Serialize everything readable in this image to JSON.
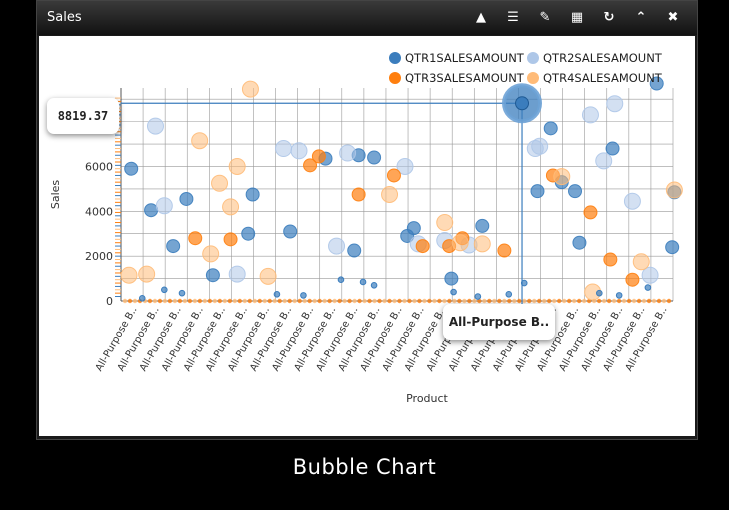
{
  "window": {
    "title": "Sales",
    "tools": [
      {
        "icon": "warning-icon",
        "glyph": "▲"
      },
      {
        "icon": "list-icon",
        "glyph": "☰"
      },
      {
        "icon": "pencil-icon",
        "glyph": "✎"
      },
      {
        "icon": "grid-icon",
        "glyph": "▦"
      },
      {
        "icon": "refresh-icon",
        "glyph": "↻"
      },
      {
        "icon": "collapse-icon",
        "glyph": "⌃"
      },
      {
        "icon": "close-icon",
        "glyph": "✖"
      }
    ]
  },
  "caption": "Bubble Chart",
  "colors": {
    "QTR1SALESAMOUNT": "#3b7dbd",
    "QTR2SALESAMOUNT": "#aec7e8",
    "QTR3SALESAMOUNT": "#ff7f0e",
    "QTR4SALESAMOUNT": "#ffbb78"
  },
  "tooltip_value": "8819.37",
  "tooltip_category": "All-Purpose B..",
  "chart_data": {
    "type": "scatter",
    "xlabel": "Product",
    "ylabel": "Sales",
    "ylim": [
      0,
      9500
    ],
    "yticks": [
      0,
      2000,
      4000,
      6000
    ],
    "category_label": "All-Purpose B..",
    "n_categories": 25,
    "series": [
      {
        "name": "QTR1SALESAMOUNT",
        "points": [
          [
            0.1,
            5900
          ],
          [
            1.0,
            4050
          ],
          [
            2.0,
            2450
          ],
          [
            2.6,
            4550
          ],
          [
            3.8,
            1150
          ],
          [
            5.6,
            4750
          ],
          [
            5.4,
            3000
          ],
          [
            7.3,
            3100
          ],
          [
            8.9,
            6350
          ],
          [
            10.2,
            2250
          ],
          [
            10.4,
            6500
          ],
          [
            11.1,
            6400
          ],
          [
            12.6,
            2900
          ],
          [
            12.9,
            3250
          ],
          [
            14.6,
            1000
          ],
          [
            16.0,
            3350
          ],
          [
            17.8,
            8819
          ],
          [
            18.5,
            4900
          ],
          [
            19.1,
            7700
          ],
          [
            19.6,
            5300
          ],
          [
            20.2,
            4900
          ],
          [
            20.4,
            2600
          ],
          [
            21.9,
            6800
          ],
          [
            23.9,
            9700
          ],
          [
            24.7,
            4850
          ],
          [
            24.6,
            2400
          ]
        ]
      },
      {
        "name": "QTR2SALESAMOUNT",
        "points": [
          [
            1.2,
            7800
          ],
          [
            1.6,
            4250
          ],
          [
            4.9,
            1200
          ],
          [
            7.0,
            6800
          ],
          [
            7.7,
            6700
          ],
          [
            9.4,
            2450
          ],
          [
            9.9,
            6600
          ],
          [
            12.5,
            6000
          ],
          [
            13.1,
            2550
          ],
          [
            14.3,
            2700
          ],
          [
            15.4,
            2500
          ],
          [
            18.4,
            6800
          ],
          [
            18.6,
            6900
          ],
          [
            20.9,
            8300
          ],
          [
            21.5,
            6250
          ],
          [
            22.0,
            8800
          ],
          [
            22.8,
            4450
          ],
          [
            23.6,
            1150
          ]
        ]
      },
      {
        "name": "QTR3SALESAMOUNT",
        "points": [
          [
            3.0,
            2800
          ],
          [
            4.6,
            2750
          ],
          [
            8.2,
            6050
          ],
          [
            8.6,
            6450
          ],
          [
            10.4,
            4750
          ],
          [
            12.0,
            5600
          ],
          [
            13.3,
            2450
          ],
          [
            14.5,
            2450
          ],
          [
            15.1,
            2800
          ],
          [
            17.0,
            2250
          ],
          [
            19.2,
            5600
          ],
          [
            20.9,
            3950
          ],
          [
            21.8,
            1850
          ],
          [
            22.8,
            950
          ]
        ]
      },
      {
        "name": "QTR4SALESAMOUNT",
        "points": [
          [
            0.0,
            1150
          ],
          [
            0.8,
            1200
          ],
          [
            3.2,
            7150
          ],
          [
            3.7,
            2100
          ],
          [
            4.1,
            5250
          ],
          [
            4.6,
            4200
          ],
          [
            4.9,
            6000
          ],
          [
            5.5,
            9450
          ],
          [
            6.3,
            1100
          ],
          [
            11.8,
            4750
          ],
          [
            14.3,
            3500
          ],
          [
            15.0,
            2600
          ],
          [
            16.0,
            2550
          ],
          [
            19.6,
            5550
          ],
          [
            21.0,
            400
          ],
          [
            23.2,
            1750
          ],
          [
            24.7,
            4950
          ]
        ]
      }
    ]
  }
}
